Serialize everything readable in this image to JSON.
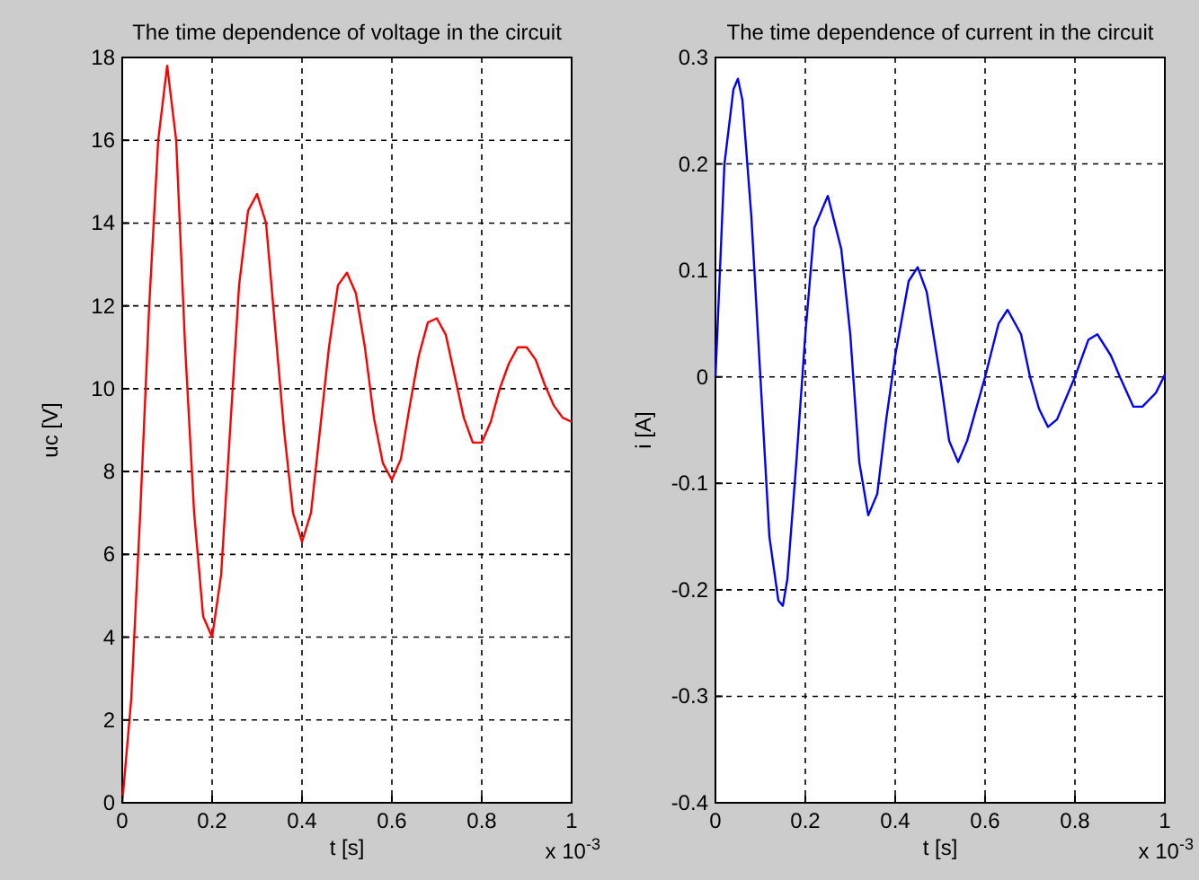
{
  "chart_data": [
    {
      "type": "line",
      "title": "The time dependence of voltage in the circuit",
      "xlabel": "t [s]",
      "ylabel": "uc [V]",
      "annotations": [
        "x 10$^{-3}$"
      ],
      "xlim": [
        0,
        1
      ],
      "xticks": [
        0,
        0.2,
        0.4,
        0.6,
        0.8,
        1
      ],
      "ylim": [
        0,
        18
      ],
      "yticks": [
        0,
        2,
        4,
        6,
        8,
        10,
        12,
        14,
        16,
        18
      ],
      "grid": true,
      "series": [
        {
          "color": "#ff0000",
          "x": [
            0,
            0.02,
            0.04,
            0.06,
            0.08,
            0.1,
            0.12,
            0.14,
            0.16,
            0.18,
            0.2,
            0.22,
            0.24,
            0.26,
            0.28,
            0.3,
            0.32,
            0.34,
            0.36,
            0.38,
            0.4,
            0.42,
            0.44,
            0.46,
            0.48,
            0.5,
            0.52,
            0.54,
            0.56,
            0.58,
            0.6,
            0.62,
            0.64,
            0.66,
            0.68,
            0.7,
            0.72,
            0.74,
            0.76,
            0.78,
            0.8,
            0.82,
            0.84,
            0.86,
            0.88,
            0.9,
            0.92,
            0.94,
            0.96,
            0.98,
            1
          ],
          "values": [
            0,
            2.5,
            7,
            12,
            16,
            17.8,
            16,
            11,
            7,
            4.5,
            4,
            5.5,
            9,
            12.5,
            14.3,
            14.7,
            14,
            11.5,
            9,
            7,
            6.3,
            7,
            9,
            11,
            12.5,
            12.8,
            12.3,
            11,
            9.3,
            8.2,
            7.8,
            8.3,
            9.6,
            10.8,
            11.6,
            11.7,
            11.3,
            10.3,
            9.3,
            8.7,
            8.7,
            9.2,
            10,
            10.6,
            11,
            11,
            10.7,
            10.1,
            9.6,
            9.3,
            9.2
          ]
        }
      ]
    },
    {
      "type": "line",
      "title": "The time dependence of current in the circuit",
      "xlabel": "t [s]",
      "ylabel": "i [A]",
      "annotations": [
        "x 10$^{-3}$"
      ],
      "xlim": [
        0,
        1
      ],
      "xticks": [
        0,
        0.2,
        0.4,
        0.6,
        0.8,
        1
      ],
      "ylim": [
        -0.4,
        0.3
      ],
      "yticks": [
        -0.4,
        -0.3,
        -0.2,
        -0.1,
        0,
        0.1,
        0.2,
        0.3
      ],
      "grid": true,
      "series": [
        {
          "color": "#0000ff",
          "x": [
            0,
            0.005,
            0.02,
            0.04,
            0.05,
            0.06,
            0.08,
            0.1,
            0.12,
            0.14,
            0.15,
            0.16,
            0.18,
            0.2,
            0.22,
            0.25,
            0.28,
            0.3,
            0.32,
            0.34,
            0.36,
            0.38,
            0.4,
            0.43,
            0.45,
            0.47,
            0.5,
            0.52,
            0.54,
            0.56,
            0.6,
            0.63,
            0.65,
            0.68,
            0.7,
            0.72,
            0.74,
            0.76,
            0.8,
            0.83,
            0.85,
            0.88,
            0.9,
            0.93,
            0.95,
            0.98,
            1
          ],
          "values": [
            0,
            0.05,
            0.2,
            0.27,
            0.28,
            0.26,
            0.15,
            0,
            -0.15,
            -0.21,
            -0.215,
            -0.19,
            -0.08,
            0.04,
            0.14,
            0.17,
            0.12,
            0.04,
            -0.08,
            -0.13,
            -0.11,
            -0.04,
            0.02,
            0.09,
            0.103,
            0.08,
            0,
            -0.06,
            -0.08,
            -0.06,
            0,
            0.05,
            0.063,
            0.04,
            0,
            -0.03,
            -0.047,
            -0.04,
            0,
            0.035,
            0.04,
            0.02,
            0,
            -0.028,
            -0.028,
            -0.015,
            0.002
          ]
        }
      ]
    }
  ]
}
